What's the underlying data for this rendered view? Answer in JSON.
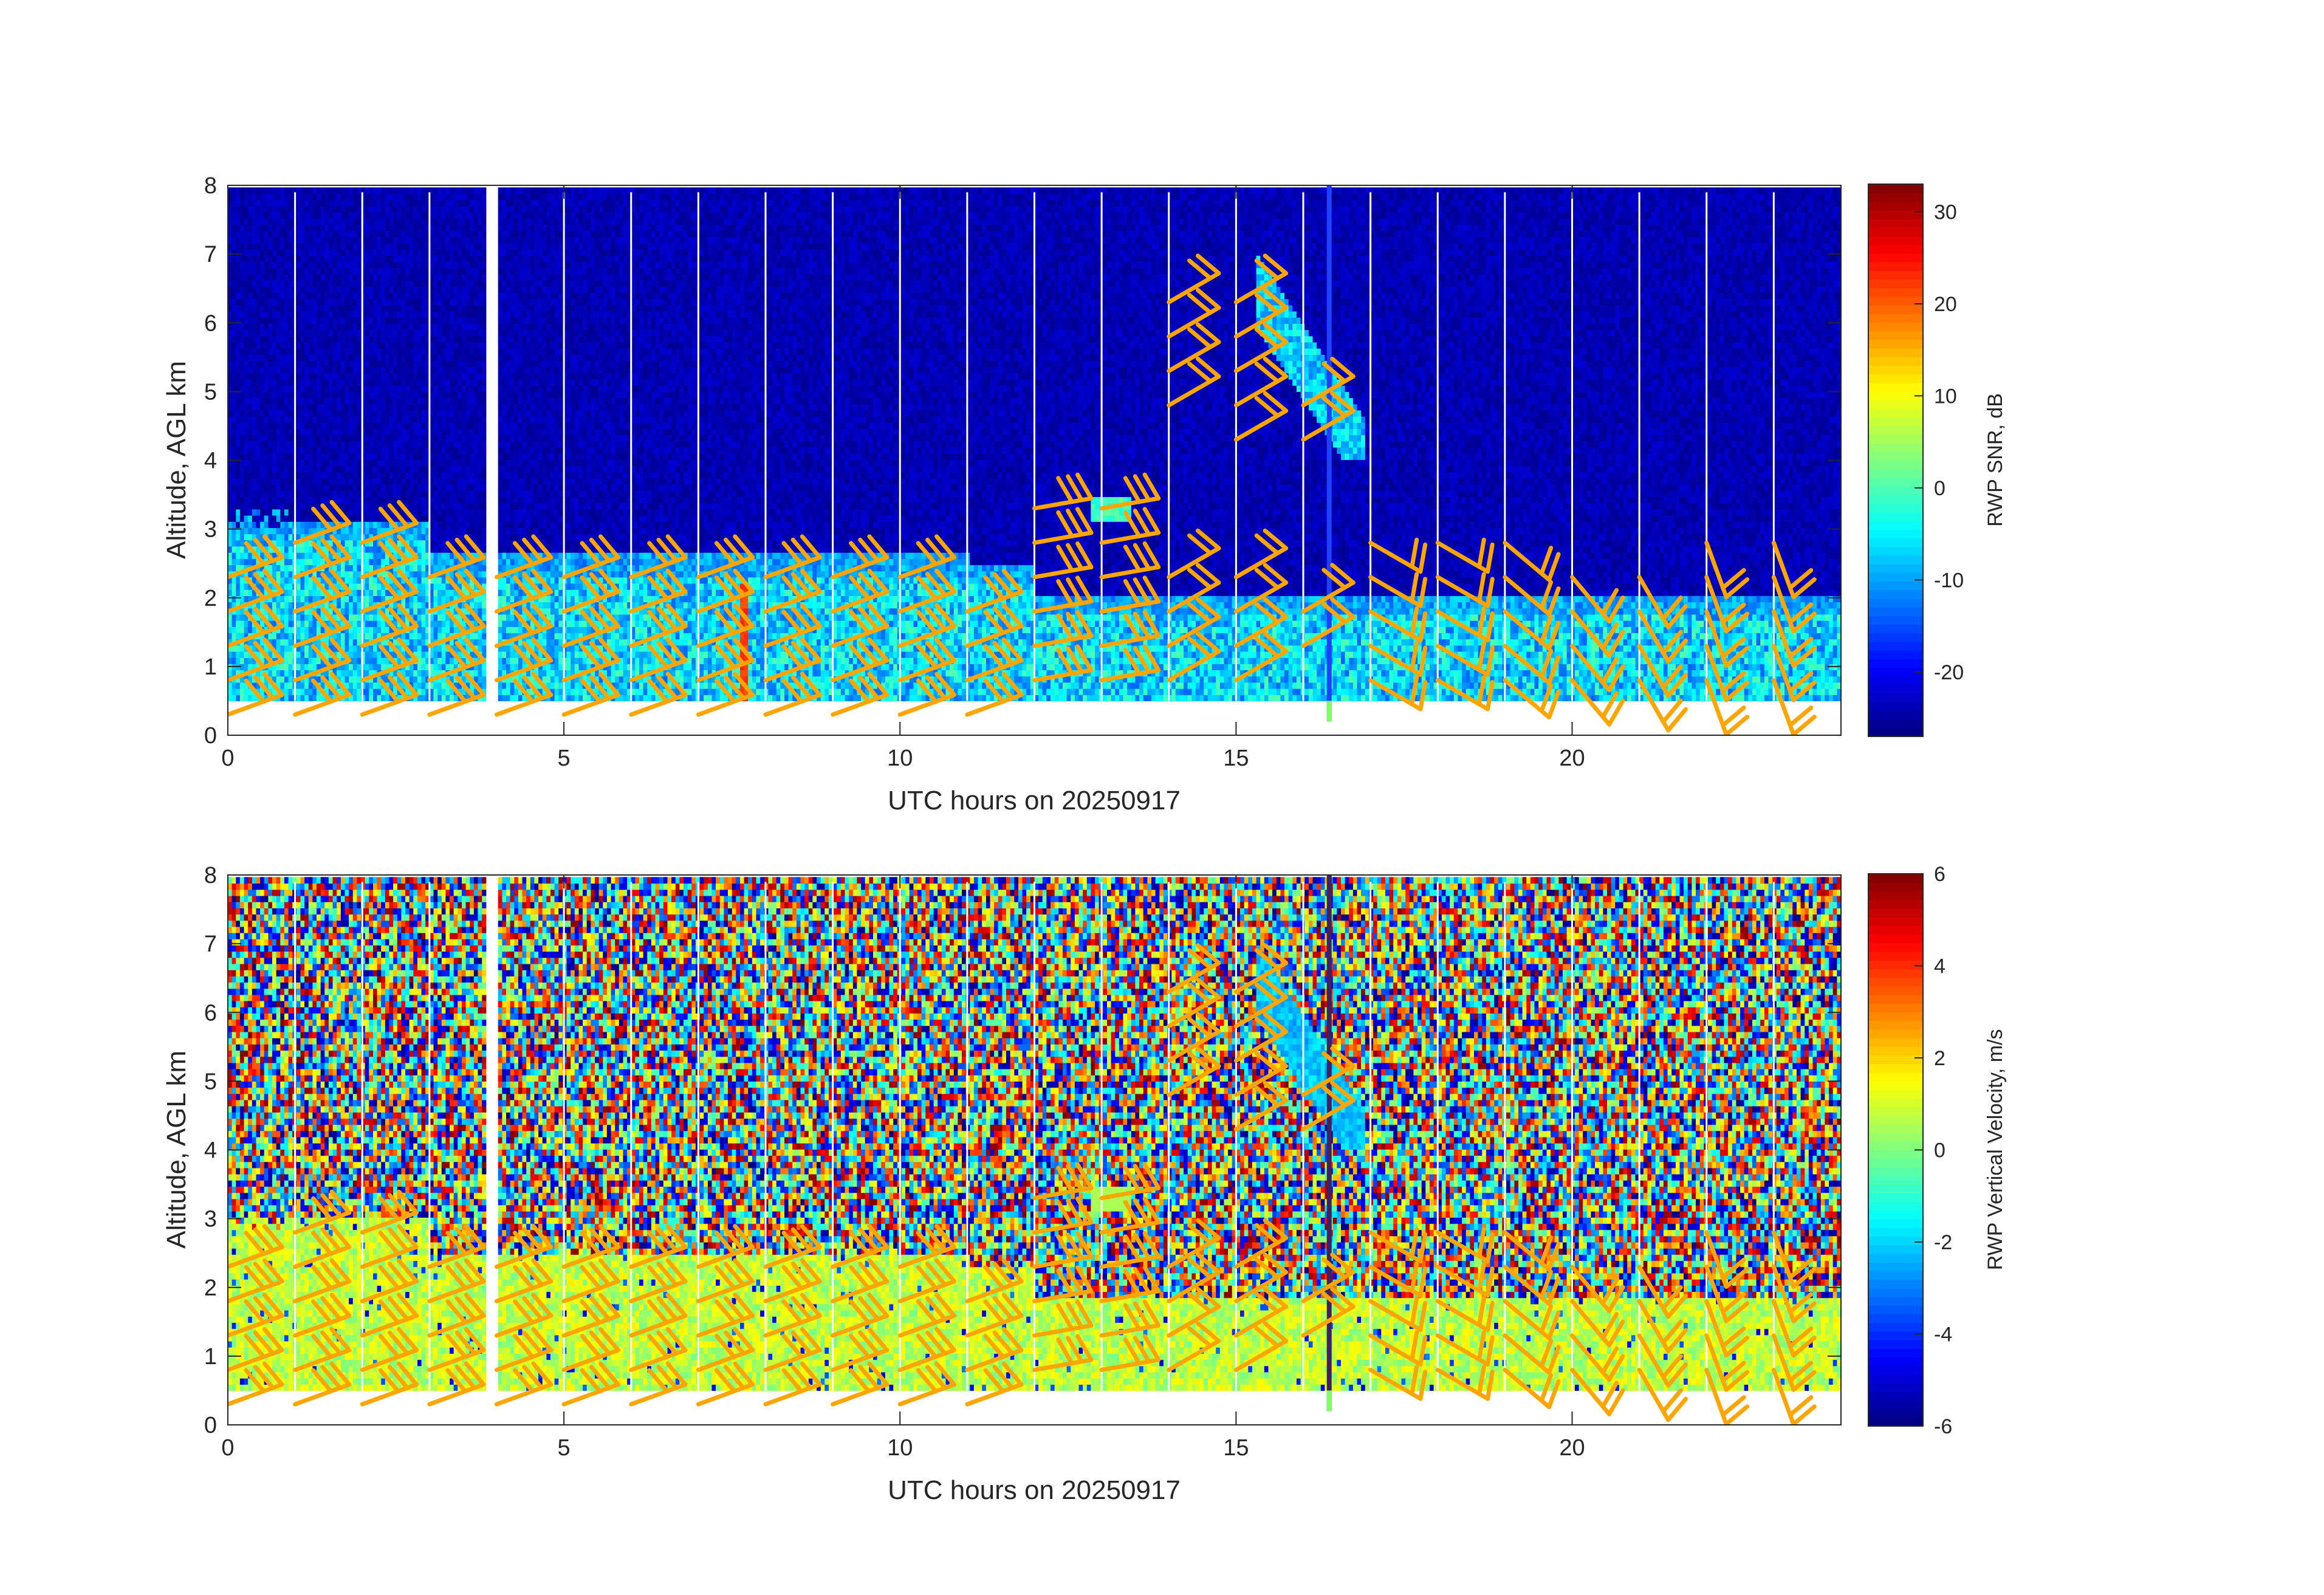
{
  "chart_data": [
    {
      "type": "heatmap",
      "title": "",
      "xlabel": "UTC hours on 20250917",
      "ylabel": "Altitude, AGL km",
      "colorbar_label": "RWP SNR, dB",
      "xlim": [
        0,
        24
      ],
      "ylim": [
        0,
        8
      ],
      "xticks": [
        0,
        5,
        10,
        15,
        20
      ],
      "yticks": [
        0,
        1,
        2,
        3,
        4,
        5,
        6,
        7,
        8
      ],
      "clim": [
        -27,
        33
      ],
      "cticks": [
        -20,
        -10,
        0,
        10,
        20,
        30
      ],
      "colormap": "jet",
      "field": "snr",
      "description_of_field": [
        {
          "feature": "background",
          "altitude_km": [
            0.5,
            8
          ],
          "value": -24
        },
        {
          "feature": "boundary_layer_echo",
          "altitude_km": [
            0.5,
            2.5
          ],
          "value": -8
        },
        {
          "feature": "cloud_plume",
          "time_h": [
            15.3,
            16.9
          ],
          "altitude_km": [
            4,
            6.6
          ],
          "value": -10
        },
        {
          "feature": "bright_column",
          "time_h": 7.65,
          "altitude_km": [
            0.5,
            2.2
          ],
          "value": 22
        }
      ],
      "data_gap_h": [
        3.88,
        4.0
      ],
      "overlay": "wind_barbs",
      "barb_color": "#ffa500"
    },
    {
      "type": "heatmap",
      "title": "",
      "xlabel": "UTC hours on 20250917",
      "ylabel": "Altitude, AGL km",
      "colorbar_label": "RWP Vertical Velocity, m/s",
      "xlim": [
        0,
        24
      ],
      "ylim": [
        0,
        8
      ],
      "xticks": [
        0,
        5,
        10,
        15,
        20
      ],
      "yticks": [
        0,
        1,
        2,
        3,
        4,
        5,
        6,
        7,
        8
      ],
      "clim": [
        -6,
        6
      ],
      "cticks": [
        -6,
        -4,
        -2,
        0,
        2,
        4,
        6
      ],
      "colormap": "jet",
      "field": "vertical_velocity",
      "description_of_field": [
        {
          "feature": "noise_above_boundary_layer",
          "altitude_km": [
            2.5,
            8
          ],
          "value_range": [
            -6,
            6
          ]
        },
        {
          "feature": "boundary_layer",
          "altitude_km": [
            0.5,
            2.5
          ],
          "value": 1
        },
        {
          "feature": "cloud_plume",
          "time_h": [
            15.3,
            16.9
          ],
          "altitude_km": [
            4,
            6.6
          ],
          "value": -2
        }
      ],
      "data_gap_h": [
        3.88,
        4.0
      ],
      "overlay": "wind_barbs",
      "barb_color": "#ffa500"
    }
  ],
  "wind_barbs": {
    "color": "#ffa500",
    "profiles": [
      {
        "time_h": 0.0,
        "heights_km": [
          0.3,
          0.8,
          1.3,
          1.8,
          2.3
        ],
        "direction_deg": 250,
        "barbs": 3
      },
      {
        "time_h": 1.0,
        "heights_km": [
          0.3,
          0.8,
          1.3,
          1.8,
          2.3,
          2.8
        ],
        "direction_deg": 250,
        "barbs": 3
      },
      {
        "time_h": 2.0,
        "heights_km": [
          0.3,
          0.8,
          1.3,
          1.8,
          2.3,
          2.8
        ],
        "direction_deg": 250,
        "barbs": 3
      },
      {
        "time_h": 3.0,
        "heights_km": [
          0.3,
          0.8,
          1.3,
          1.8,
          2.3
        ],
        "direction_deg": 250,
        "barbs": 3
      },
      {
        "time_h": 4.0,
        "heights_km": [
          0.3,
          0.8,
          1.3,
          1.8,
          2.3
        ],
        "direction_deg": 250,
        "barbs": 3
      },
      {
        "time_h": 5.0,
        "heights_km": [
          0.3,
          0.8,
          1.3,
          1.8,
          2.3
        ],
        "direction_deg": 250,
        "barbs": 3
      },
      {
        "time_h": 6.0,
        "heights_km": [
          0.3,
          0.8,
          1.3,
          1.8,
          2.3
        ],
        "direction_deg": 250,
        "barbs": 3
      },
      {
        "time_h": 7.0,
        "heights_km": [
          0.3,
          0.8,
          1.3,
          1.8,
          2.3
        ],
        "direction_deg": 250,
        "barbs": 3
      },
      {
        "time_h": 8.0,
        "heights_km": [
          0.3,
          0.8,
          1.3,
          1.8,
          2.3
        ],
        "direction_deg": 250,
        "barbs": 3
      },
      {
        "time_h": 9.0,
        "heights_km": [
          0.3,
          0.8,
          1.3,
          1.8,
          2.3
        ],
        "direction_deg": 250,
        "barbs": 3
      },
      {
        "time_h": 10.0,
        "heights_km": [
          0.3,
          0.8,
          1.3,
          1.8,
          2.3
        ],
        "direction_deg": 250,
        "barbs": 3
      },
      {
        "time_h": 11.0,
        "heights_km": [
          0.3,
          0.8,
          1.3,
          1.8
        ],
        "direction_deg": 250,
        "barbs": 3
      },
      {
        "time_h": 12.0,
        "heights_km": [
          0.8,
          1.3,
          1.8,
          2.3,
          2.8,
          3.3
        ],
        "direction_deg": 260,
        "barbs": 3
      },
      {
        "time_h": 13.0,
        "heights_km": [
          0.8,
          1.3,
          1.8,
          2.3,
          2.8,
          3.3
        ],
        "direction_deg": 260,
        "barbs": 3
      },
      {
        "time_h": 14.0,
        "heights_km": [
          0.8,
          1.3,
          1.8,
          2.3,
          4.8,
          5.3,
          5.8,
          6.3
        ],
        "direction_deg": 240,
        "barbs": 2
      },
      {
        "time_h": 15.0,
        "heights_km": [
          0.8,
          1.3,
          1.8,
          2.3,
          4.3,
          4.8,
          5.3,
          5.8,
          6.3
        ],
        "direction_deg": 240,
        "barbs": 2
      },
      {
        "time_h": 16.0,
        "heights_km": [
          1.3,
          1.8,
          4.3,
          4.8
        ],
        "direction_deg": 240,
        "barbs": 2
      },
      {
        "time_h": 17.0,
        "heights_km": [
          0.8,
          1.3,
          1.8,
          2.3,
          2.8
        ],
        "direction_deg": 300,
        "barbs": 2
      },
      {
        "time_h": 18.0,
        "heights_km": [
          0.8,
          1.3,
          1.8,
          2.3,
          2.8
        ],
        "direction_deg": 300,
        "barbs": 2
      },
      {
        "time_h": 19.0,
        "heights_km": [
          0.8,
          1.3,
          1.8,
          2.3,
          2.8
        ],
        "direction_deg": 310,
        "barbs": 2
      },
      {
        "time_h": 20.0,
        "heights_km": [
          0.8,
          1.3,
          1.8,
          2.3
        ],
        "direction_deg": 320,
        "barbs": 2
      },
      {
        "time_h": 21.0,
        "heights_km": [
          0.8,
          1.3,
          1.8,
          2.3
        ],
        "direction_deg": 330,
        "barbs": 2
      },
      {
        "time_h": 22.0,
        "heights_km": [
          0.8,
          1.3,
          1.8,
          2.3,
          2.8
        ],
        "direction_deg": 340,
        "barbs": 2
      },
      {
        "time_h": 23.0,
        "heights_km": [
          0.8,
          1.3,
          1.8,
          2.3,
          2.8
        ],
        "direction_deg": 340,
        "barbs": 2
      }
    ]
  }
}
